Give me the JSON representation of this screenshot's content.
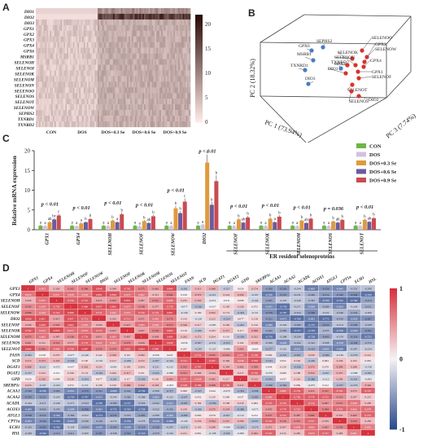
{
  "panels": {
    "a": "A",
    "b": "B",
    "c": "C",
    "d": "D"
  },
  "chart_data": [
    {
      "type": "heatmap",
      "panel": "A",
      "rows": [
        "DIO1",
        "DIO2",
        "DIO3",
        "GPX1",
        "GPX2",
        "GPX3",
        "GPX4",
        "GPX6",
        "MSRB1",
        "SELENOH",
        "SELENOI",
        "SELENOK",
        "SELENOM",
        "SELENON",
        "SELENOO",
        "SELENOS",
        "SELENOT",
        "SELENOW",
        "SEPHS2",
        "TXNRD1",
        "TXNRD2"
      ],
      "columns": [
        "CON",
        "DOS",
        "DOS+0.3 Se",
        "DOS+0.6 Se",
        "DOS+0.9 Se"
      ],
      "colorbar_ticks": [
        "20",
        "15",
        "10",
        "5",
        "0"
      ],
      "colorbar_range": [
        0,
        22
      ],
      "colors": {
        "low": "#fde9e7",
        "high": "#2a0a06"
      }
    },
    {
      "type": "scatter",
      "panel": "B",
      "xlabel": "PC 1 (73.94%)",
      "ylabel": "PC 2 (18.32%)",
      "zlabel": "PC 3 (7.74%)",
      "groups": [
        {
          "name": "blue",
          "color": "#4a7dc0",
          "labels": [
            "GPX6",
            "SEPHS2",
            "MSRB1",
            "TXNRD1",
            "DIO3",
            "TXNRD2"
          ]
        },
        {
          "name": "red",
          "color": "#d8332a",
          "labels": [
            "SELENOO",
            "SELENOW",
            "GPX2",
            "GPX4",
            "GPX1",
            "SELENOK",
            "DIO1",
            "SELENOF",
            "SELENOT",
            "SELENOS",
            "DIO2",
            "SELENON",
            "GPX3"
          ]
        }
      ]
    },
    {
      "type": "bar",
      "panel": "C",
      "ylabel": "Relative mRNA expression",
      "ylim": [
        0,
        20
      ],
      "yticks": [
        "0",
        "5",
        "10",
        "15",
        "20"
      ],
      "categories": [
        "GPX1",
        "GPX4",
        "SELENOH",
        "SELENOF",
        "SELENOW",
        "DIO2",
        "SELENOF",
        "SELENOK",
        "SELENOM",
        "SELENOS",
        "SELENOT"
      ],
      "pvalues": [
        "p < 0.01",
        "p < 0.01",
        "p < 0.01",
        "p < 0.01",
        "p < 0.01",
        "p < 0.01",
        "p < 0.01",
        "p < 0.01",
        "p < 0.01",
        "p = 0.036",
        "p < 0.01"
      ],
      "letters": [
        [
          "a",
          "a",
          "ab",
          "bc",
          "c"
        ],
        [
          "a",
          "a",
          "a",
          "b",
          "b"
        ],
        [
          "a",
          "a",
          "b",
          "a",
          "b"
        ],
        [
          "a",
          "a",
          "b",
          "ab",
          "b"
        ],
        [
          "a",
          "a",
          "b",
          "b",
          "c"
        ],
        [
          "a",
          "a",
          "c",
          "b",
          "b"
        ],
        [
          "a",
          "a",
          "b",
          "ab",
          "b"
        ],
        [
          "a",
          "a",
          "b",
          "a",
          "b"
        ],
        [
          "a",
          "a",
          "b",
          "ab",
          "b"
        ],
        [
          "a",
          "a",
          "b",
          "ab",
          "b"
        ],
        [
          "a",
          "a",
          "b",
          "ab",
          "b"
        ]
      ],
      "series": [
        {
          "name": "CON",
          "color": "#6bb646",
          "values": [
            1.0,
            1.0,
            1.0,
            1.0,
            1.0,
            1.0,
            1.0,
            1.0,
            1.0,
            1.0,
            1.0
          ]
        },
        {
          "name": "DOS",
          "color": "#d0c4dc",
          "values": [
            0.9,
            0.85,
            0.9,
            0.8,
            0.9,
            1.2,
            0.9,
            0.9,
            0.85,
            0.9,
            0.9
          ]
        },
        {
          "name": "DOS+0.3 Se",
          "color": "#e09a3c",
          "values": [
            1.9,
            1.6,
            2.3,
            2.2,
            5.4,
            17.0,
            2.6,
            2.8,
            2.3,
            2.1,
            2.5
          ]
        },
        {
          "name": "DOS+0.6 Se",
          "color": "#6c5a9c",
          "values": [
            2.6,
            1.9,
            1.9,
            1.7,
            4.2,
            6.3,
            1.8,
            1.9,
            1.7,
            1.8,
            2.0
          ]
        },
        {
          "name": "DOS+0.9 Se",
          "color": "#c94a53",
          "values": [
            3.6,
            2.7,
            3.9,
            3.4,
            7.1,
            12.3,
            3.1,
            3.3,
            2.8,
            2.5,
            2.9
          ]
        }
      ],
      "bracket_label": "ER resident selenoproteins"
    },
    {
      "type": "heatmap",
      "panel": "D",
      "columns": [
        "GPX1",
        "GPX4",
        "SELENOH",
        "SELENOF",
        "SELENOW",
        "DIO2",
        "SELENOF",
        "SELENOK",
        "SELENOM",
        "SELENOS",
        "SELENOT",
        "FASN",
        "SCD",
        "DGAT1",
        "DGAT2",
        "GPD",
        "SREBP1c",
        "ACAA1",
        "ACAA2",
        "ACADL",
        "ACOX1",
        "ATGL1",
        "CPT1a",
        "ECH1",
        "HSL"
      ],
      "rows": [
        "GPX1",
        "GPX4",
        "SELENOH",
        "SELENOF",
        "SELENOW",
        "DIO2",
        "SELENOF",
        "SELENOK",
        "SELENOM",
        "SELENOS",
        "SELENOT",
        "FASN",
        "SCD",
        "DGAT1",
        "DGAT2",
        "GPD",
        "SREBP1c",
        "ACAA1",
        "ACAA2",
        "ACADL",
        "ACOX1",
        "ATGL1",
        "CPT1a",
        "ECH1",
        "HSL"
      ],
      "colorbar_ticks": [
        "1",
        "0",
        "-1"
      ],
      "colorbar_range": [
        -1,
        1
      ],
      "colors": {
        "negative": "#2d4b8e",
        "neutral": "#f6f2f4",
        "positive": "#d6333e"
      },
      "groups": [
        11,
        6,
        8
      ]
    }
  ]
}
